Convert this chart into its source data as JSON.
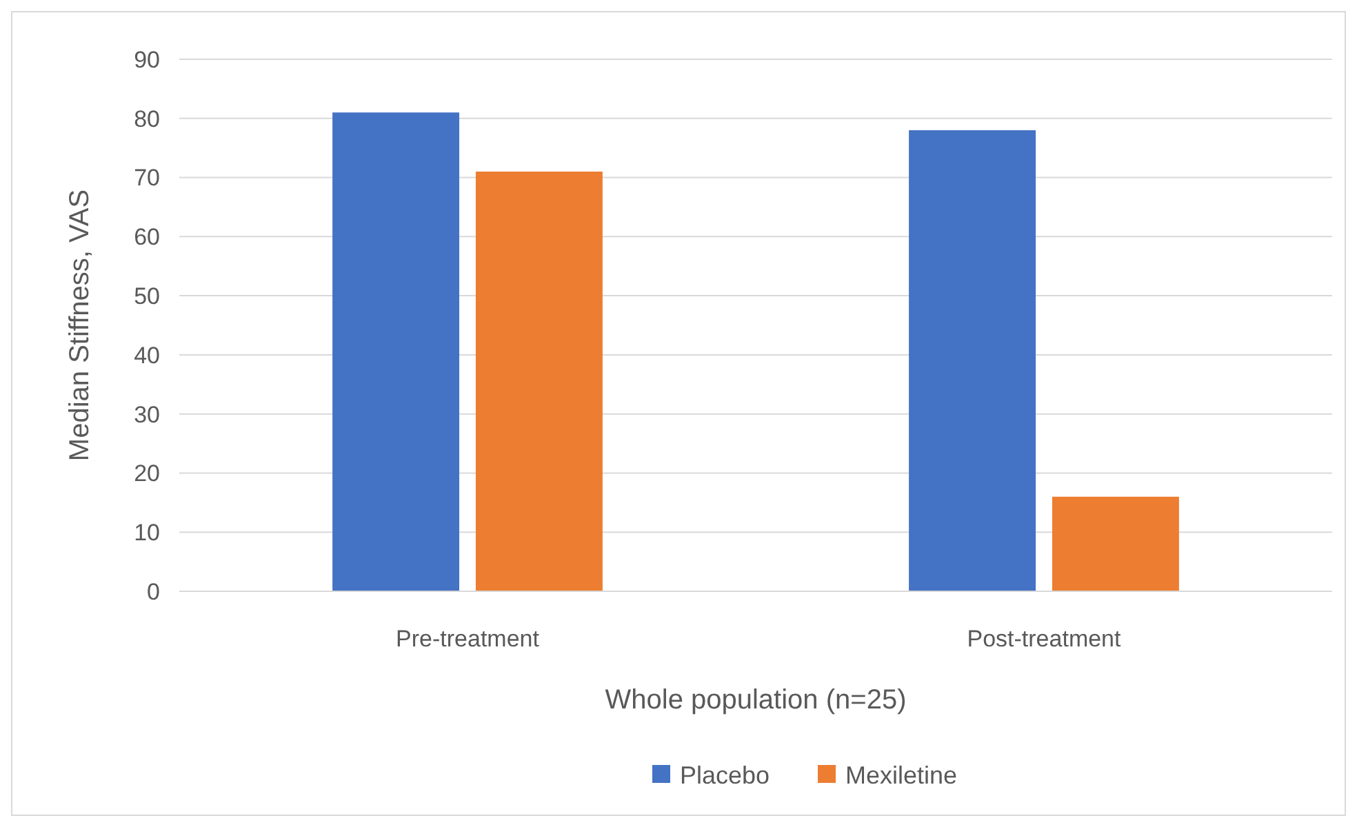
{
  "chart_data": {
    "type": "bar",
    "xlabel": "Whole population (n=25)",
    "ylabel": "Median Stiffness, VAS",
    "categories": [
      "Pre-treatment",
      "Post-treatment"
    ],
    "series": [
      {
        "name": "Placebo",
        "color": "#4472c4",
        "values": [
          81,
          78
        ]
      },
      {
        "name": "Mexiletine",
        "color": "#ed7d31",
        "values": [
          71,
          16
        ]
      }
    ],
    "ylim": [
      0,
      90
    ],
    "yticks": [
      0,
      10,
      20,
      30,
      40,
      50,
      60,
      70,
      80,
      90
    ],
    "grid": "y",
    "legend": "bottom"
  }
}
